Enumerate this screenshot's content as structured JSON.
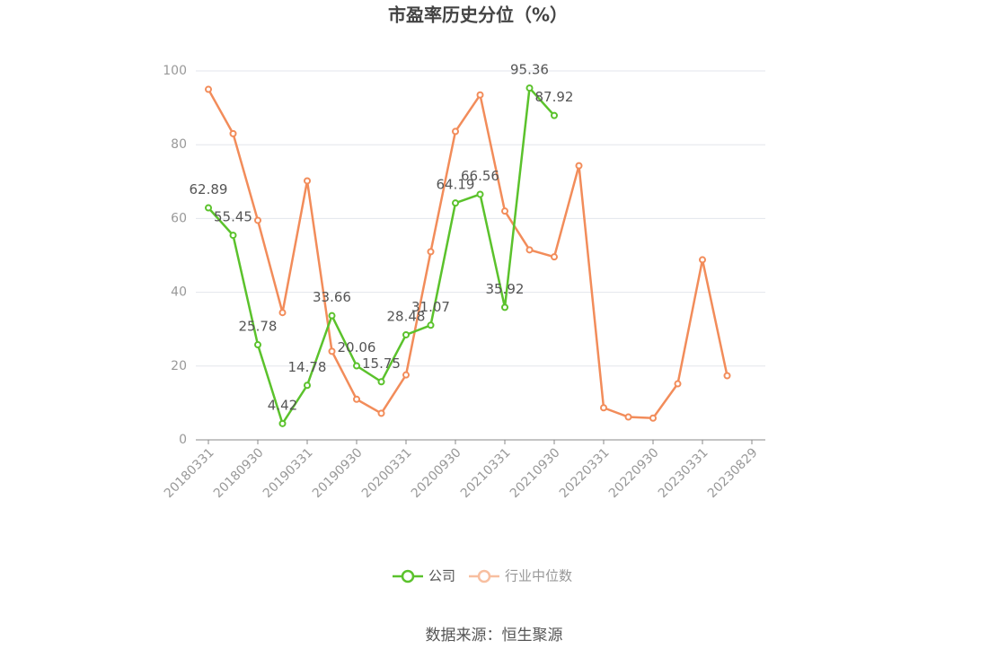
{
  "chart_data": {
    "type": "line",
    "title": "市盈率历史分位（%）",
    "categories": [
      "20180331",
      null,
      "20180930",
      null,
      "20190331",
      null,
      "20190930",
      null,
      "20200331",
      null,
      "20200930",
      null,
      "20210331",
      null,
      "20210930",
      null,
      "20220331",
      null,
      "20220930",
      null,
      "20230331",
      null,
      "20230829"
    ],
    "series": [
      {
        "name": "公司",
        "color": "#5bc22c",
        "values": [
          62.89,
          55.45,
          25.78,
          4.42,
          14.78,
          33.66,
          20.06,
          15.75,
          28.48,
          31.07,
          64.19,
          66.56,
          35.92,
          95.36,
          87.92,
          null,
          null,
          null,
          null,
          null,
          null,
          null,
          null
        ],
        "show_labels": true
      },
      {
        "name": "行业中位数",
        "color": "#f28c5a",
        "values": [
          95,
          83,
          59.5,
          34.5,
          70.2,
          24,
          11,
          7.2,
          17.6,
          51,
          83.6,
          93.5,
          62,
          51.5,
          49.6,
          74.3,
          8.7,
          6.2,
          5.9,
          15.2,
          48.8,
          17.4,
          null
        ],
        "show_labels": false
      }
    ],
    "ylim": [
      0,
      100
    ],
    "yticks": [
      0,
      20,
      40,
      60,
      80,
      100
    ],
    "grid": true,
    "source": "数据来源：恒生聚源"
  }
}
